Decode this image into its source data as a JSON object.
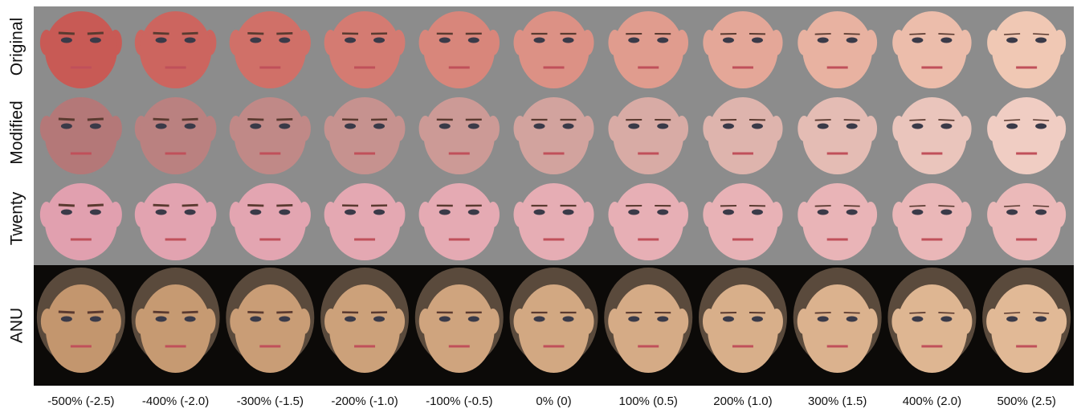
{
  "figure": {
    "rows": [
      "Original",
      "Modified",
      "Twenty",
      "ANU"
    ],
    "columns": [
      "-500% (-2.5)",
      "-400% (-2.0)",
      "-300% (-1.5)",
      "-200% (-1.0)",
      "-100% (-0.5)",
      "0% (0)",
      "100% (0.5)",
      "200% (1.0)",
      "300% (1.5)",
      "400% (2.0)",
      "500% (2.5)"
    ]
  }
}
